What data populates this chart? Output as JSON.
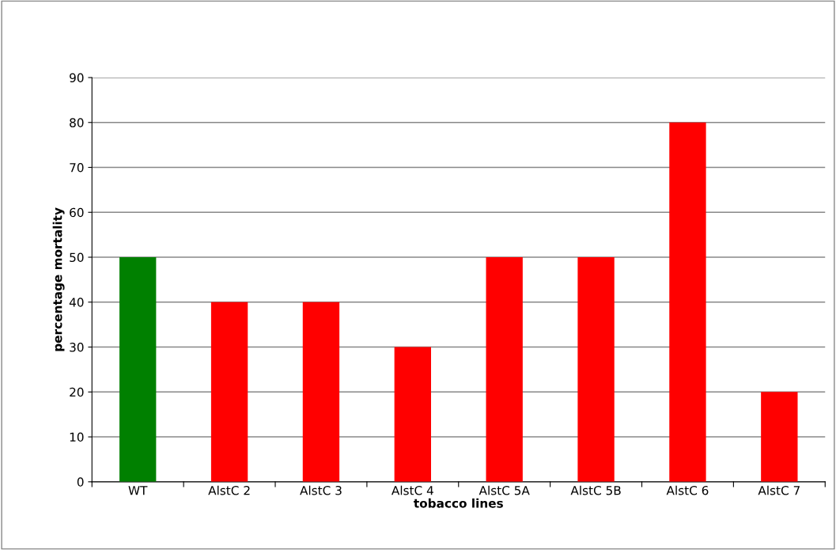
{
  "chart_data": {
    "type": "bar",
    "xlabel": "tobacco lines",
    "ylabel": "percentage mortality",
    "categories": [
      "WT",
      "AlstC 2",
      "AlstC 3",
      "AlstC 4",
      "AlstC 5A",
      "AlstC 5B",
      "AlstC 6",
      "AlstC 7"
    ],
    "values": [
      50,
      40,
      40,
      30,
      50,
      50,
      80,
      20
    ],
    "colors": [
      "#008000",
      "#ff0000",
      "#ff0000",
      "#ff0000",
      "#ff0000",
      "#ff0000",
      "#ff0000",
      "#ff0000"
    ],
    "ylim": [
      0,
      90
    ],
    "yticks": [
      0,
      10,
      20,
      30,
      40,
      50,
      60,
      70,
      80,
      90
    ],
    "grid": "y"
  }
}
